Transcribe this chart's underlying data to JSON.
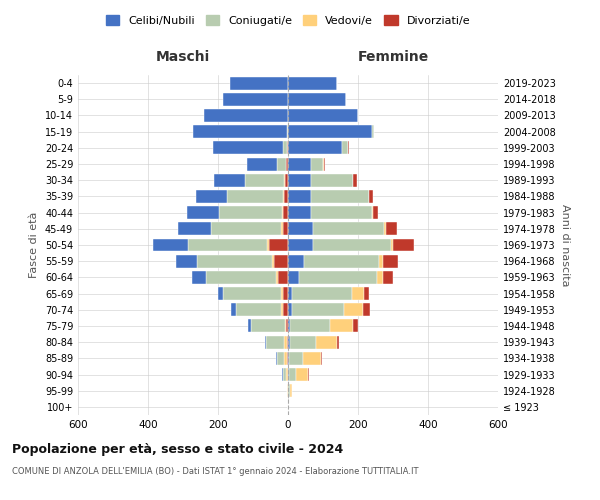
{
  "age_groups": [
    "100+",
    "95-99",
    "90-94",
    "85-89",
    "80-84",
    "75-79",
    "70-74",
    "65-69",
    "60-64",
    "55-59",
    "50-54",
    "45-49",
    "40-44",
    "35-39",
    "30-34",
    "25-29",
    "20-24",
    "15-19",
    "10-14",
    "5-9",
    "0-4"
  ],
  "birth_years": [
    "≤ 1923",
    "1924-1928",
    "1929-1933",
    "1934-1938",
    "1939-1943",
    "1944-1948",
    "1949-1953",
    "1954-1958",
    "1959-1963",
    "1964-1968",
    "1969-1973",
    "1974-1978",
    "1979-1983",
    "1984-1988",
    "1989-1993",
    "1994-1998",
    "1999-2003",
    "2004-2008",
    "2009-2013",
    "2014-2018",
    "2019-2023"
  ],
  "maschi": {
    "celibi": [
      0,
      0,
      2,
      2,
      5,
      8,
      12,
      15,
      40,
      60,
      100,
      95,
      90,
      90,
      90,
      85,
      200,
      270,
      240,
      185,
      165
    ],
    "coniugati": [
      0,
      2,
      10,
      20,
      50,
      95,
      130,
      165,
      200,
      215,
      225,
      200,
      180,
      160,
      110,
      25,
      10,
      2,
      0,
      0,
      0
    ],
    "vedovi": [
      0,
      2,
      5,
      10,
      10,
      5,
      5,
      5,
      5,
      5,
      5,
      5,
      3,
      2,
      2,
      2,
      2,
      0,
      0,
      0,
      0
    ],
    "divorziati": [
      0,
      0,
      0,
      2,
      2,
      5,
      15,
      15,
      30,
      40,
      55,
      15,
      15,
      12,
      10,
      5,
      2,
      0,
      0,
      0,
      0
    ]
  },
  "femmine": {
    "nubili": [
      0,
      0,
      2,
      3,
      5,
      5,
      10,
      12,
      30,
      45,
      70,
      70,
      65,
      65,
      65,
      65,
      155,
      240,
      200,
      165,
      140
    ],
    "coniugate": [
      0,
      5,
      20,
      40,
      75,
      115,
      150,
      170,
      225,
      215,
      225,
      205,
      175,
      165,
      120,
      35,
      15,
      5,
      0,
      0,
      0
    ],
    "vedove": [
      1,
      5,
      35,
      50,
      60,
      65,
      55,
      35,
      15,
      10,
      5,
      5,
      3,
      2,
      2,
      2,
      2,
      0,
      0,
      0,
      0
    ],
    "divorziate": [
      0,
      0,
      2,
      5,
      5,
      15,
      20,
      15,
      30,
      45,
      60,
      30,
      15,
      12,
      10,
      5,
      2,
      0,
      0,
      0,
      0
    ]
  },
  "colors": {
    "celibi": "#4472C4",
    "coniugati": "#B8CCB0",
    "vedovi": "#FFD07B",
    "divorziati": "#C0392B"
  },
  "legend_labels": [
    "Celibi/Nubili",
    "Coniugati/e",
    "Vedovi/e",
    "Divorziati/e"
  ],
  "title": "Popolazione per età, sesso e stato civile - 2024",
  "subtitle": "COMUNE DI ANZOLA DELL'EMILIA (BO) - Dati ISTAT 1° gennaio 2024 - Elaborazione TUTTITALIA.IT",
  "xlabel_left": "Maschi",
  "xlabel_right": "Femmine",
  "ylabel_left": "Fasce di età",
  "ylabel_right": "Anni di nascita",
  "xlim": 600,
  "background_color": "#FFFFFF"
}
